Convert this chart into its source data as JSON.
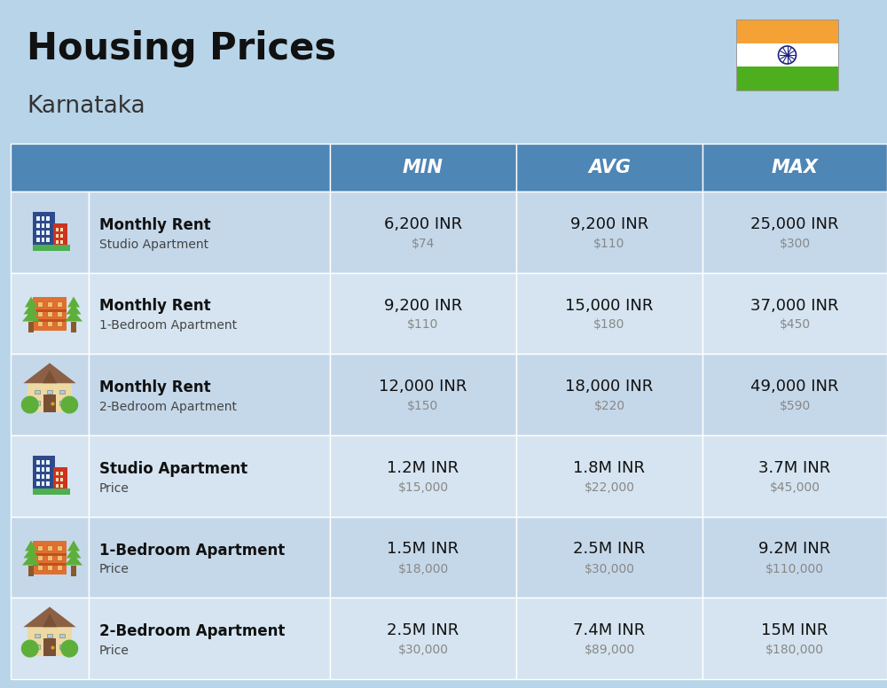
{
  "title": "Housing Prices",
  "subtitle": "Karnataka",
  "bg_color": "#B8D4E8",
  "header_bg": "#4E86B5",
  "row_bg_even": "#C5D8EA",
  "row_bg_odd": "#D5E4F0",
  "cell_border": "#FFFFFF",
  "col_headers": [
    "MIN",
    "AVG",
    "MAX"
  ],
  "title_fontsize": 30,
  "subtitle_fontsize": 19,
  "header_fontsize": 15,
  "inr_fontsize": 13,
  "usd_fontsize": 10,
  "label_bold_fontsize": 12,
  "label_sub_fontsize": 10,
  "rows": [
    {
      "label_bold": "Monthly Rent",
      "label_sub": "Studio Apartment",
      "icon": "blue_office",
      "min_inr": "6,200 INR",
      "min_usd": "$74",
      "avg_inr": "9,200 INR",
      "avg_usd": "$110",
      "max_inr": "25,000 INR",
      "max_usd": "$300"
    },
    {
      "label_bold": "Monthly Rent",
      "label_sub": "1-Bedroom Apartment",
      "icon": "orange_apt",
      "min_inr": "9,200 INR",
      "min_usd": "$110",
      "avg_inr": "15,000 INR",
      "avg_usd": "$180",
      "max_inr": "37,000 INR",
      "max_usd": "$450"
    },
    {
      "label_bold": "Monthly Rent",
      "label_sub": "2-Bedroom Apartment",
      "icon": "beige_house",
      "min_inr": "12,000 INR",
      "min_usd": "$150",
      "avg_inr": "18,000 INR",
      "avg_usd": "$220",
      "max_inr": "49,000 INR",
      "max_usd": "$590"
    },
    {
      "label_bold": "Studio Apartment",
      "label_sub": "Price",
      "icon": "blue_office",
      "min_inr": "1.2M INR",
      "min_usd": "$15,000",
      "avg_inr": "1.8M INR",
      "avg_usd": "$22,000",
      "max_inr": "3.7M INR",
      "max_usd": "$45,000"
    },
    {
      "label_bold": "1-Bedroom Apartment",
      "label_sub": "Price",
      "icon": "orange_apt",
      "min_inr": "1.5M INR",
      "min_usd": "$18,000",
      "avg_inr": "2.5M INR",
      "avg_usd": "$30,000",
      "max_inr": "9.2M INR",
      "max_usd": "$110,000"
    },
    {
      "label_bold": "2-Bedroom Apartment",
      "label_sub": "Price",
      "icon": "beige_house",
      "min_inr": "2.5M INR",
      "min_usd": "$30,000",
      "avg_inr": "7.4M INR",
      "avg_usd": "$89,000",
      "max_inr": "15M INR",
      "max_usd": "$180,000"
    }
  ],
  "flag_orange": "#F4A235",
  "flag_white": "#FFFFFF",
  "flag_green": "#4DAF1E",
  "flag_navy": "#1A237E"
}
